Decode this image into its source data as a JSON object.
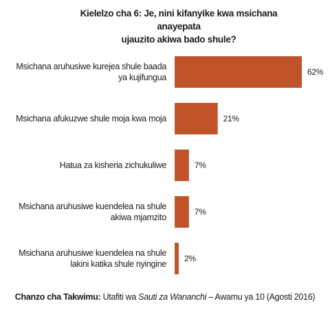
{
  "chart_data": {
    "type": "bar",
    "orientation": "horizontal",
    "title_line1": "Kielelzo cha 6: Je, nini kifanyike kwa msichana anayepata",
    "title_line2": "ujauzito akiwa bado shule?",
    "categories": [
      [
        "Msichana aruhusiwe kurejea shule baada",
        "ya kujifungua"
      ],
      [
        "Msichana afukuzwe shule moja kwa moja"
      ],
      [
        "Hatua za kisheria zichukuliwe"
      ],
      [
        "Msichana aruhusiwe kuendelea na shule",
        "akiwa mjamzito"
      ],
      [
        "Msichana aruhusiwe kuendelea na shule",
        "lakini katika shule  nyingine"
      ]
    ],
    "values": [
      62,
      21,
      7,
      7,
      2
    ],
    "value_labels": [
      "62%",
      "21%",
      "7%",
      "7%",
      "2%"
    ],
    "unit": "%",
    "bar_color": "#c0532a",
    "xlim": [
      0,
      62
    ],
    "grid": false,
    "legend": "none"
  },
  "source": {
    "bold": "Chanzo cha Takwimu:",
    "pre": " Utafiti wa ",
    "italic": "Sauti za Wananchi",
    "post": " – Awamu ya 10 (Agosti 2016)"
  }
}
